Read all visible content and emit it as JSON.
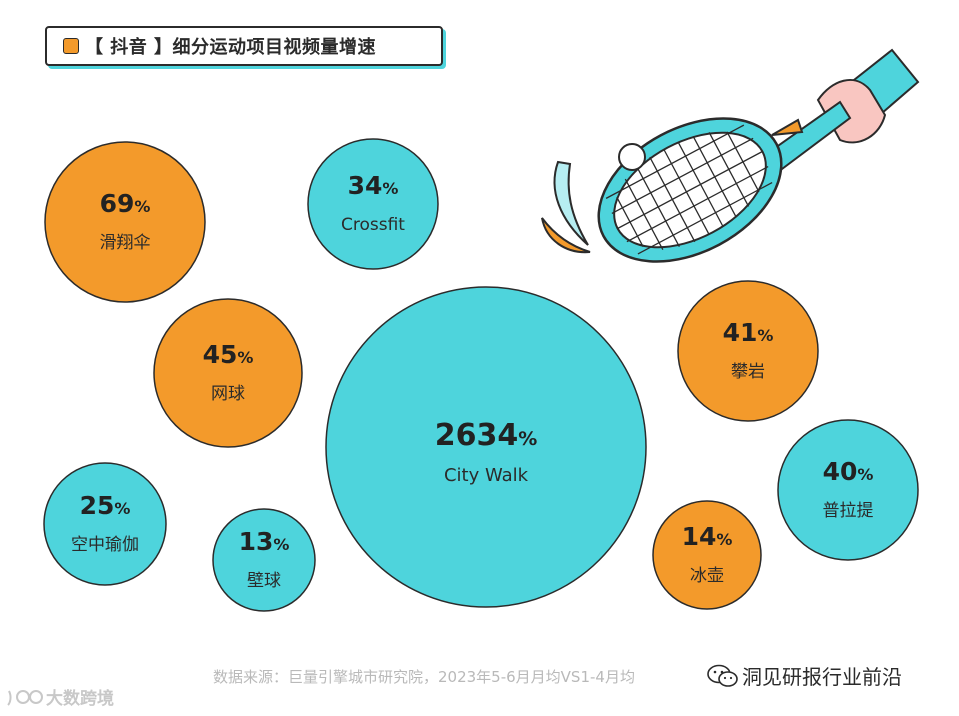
{
  "header": {
    "title": "【 抖音 】细分运动项目视频量增速"
  },
  "colors": {
    "orange": "#f39a2b",
    "teal": "#4ed4dc",
    "outline": "#2b2b2b"
  },
  "chart_data": {
    "type": "bubble",
    "title": "【 抖音 】细分运动项目视频量增速",
    "value_suffix": "%",
    "series": [
      {
        "label": "滑翔伞",
        "value_text": "69",
        "value": 69,
        "color": "orange"
      },
      {
        "label": "Crossfit",
        "value_text": "34",
        "value": 34,
        "color": "teal"
      },
      {
        "label": "网球",
        "value_text": "45",
        "value": 45,
        "color": "orange"
      },
      {
        "label": "City Walk",
        "value_text": "2634",
        "value": 2634,
        "color": "teal"
      },
      {
        "label": "攀岩",
        "value_text": "41",
        "value": 41,
        "color": "orange"
      },
      {
        "label": "空中瑜伽",
        "value_text": "25",
        "value": 25,
        "color": "teal"
      },
      {
        "label": "壁球",
        "value_text": "13",
        "value": 13,
        "color": "teal"
      },
      {
        "label": "冰壶",
        "value_text": "14",
        "value": 14,
        "color": "orange"
      },
      {
        "label": "普拉提",
        "value_text": "40",
        "value": 40,
        "color": "teal"
      }
    ]
  },
  "footer": {
    "source": "数据来源：巨量引擎城市研究院，2023年5-6月月均VS1-4月均",
    "wechat": "洞见研报行业前沿",
    "corner_logo": "大数跨境"
  }
}
